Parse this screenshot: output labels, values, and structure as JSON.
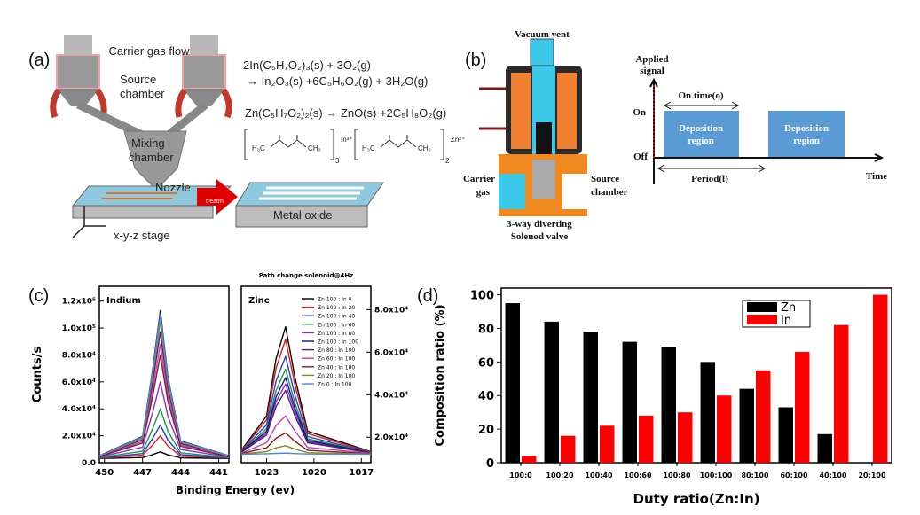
{
  "panel_letters": [
    "(a)",
    "(b)",
    "(c)",
    "(d)"
  ],
  "panel_a": {
    "carrier_gas": "Carrier gas flow",
    "source_chamber": [
      "Source",
      "chamber"
    ],
    "mixing_chamber": [
      "Mixing",
      "chamber"
    ],
    "nozzle": "Nozzle",
    "treatment": "treatm",
    "metal_oxide": "Metal oxide",
    "stage": "x-y-z stage",
    "equations": [
      "2In(C₅H₇O₂)₃(s) + 3O₂(g)",
      "→ In₂O₃(s) +6C₅H₆O₂(g) + 3H₂O(g)",
      "Zn(C₅H₇O₂)₂(s) → ZnO(s) +2C₅H₈O₂(g)"
    ],
    "molecule_groups": [
      "H₃C",
      "CH₃"
    ],
    "bracket_subscripts": [
      "3",
      "2"
    ],
    "ions": [
      "In³⁺",
      "Zn²⁺"
    ]
  },
  "panel_b": {
    "vacuum_vent": "Vacuum vent",
    "carrier_gas": [
      "Carrier",
      "gas"
    ],
    "source_chamber": [
      "Source",
      "chamber"
    ],
    "valve": [
      "3-way diverting",
      "Solenod valve"
    ],
    "signal_label": [
      "Applied",
      "signal"
    ],
    "on": "On",
    "off": "Off",
    "on_time": "On time(o)",
    "regions": [
      [
        "Deposition",
        "region"
      ],
      [
        "Deposition",
        "region"
      ]
    ],
    "period": "Period(l)",
    "time": "Time"
  },
  "chart_data": [
    {
      "type": "line",
      "label": "Indium",
      "y_label": "Counts/s",
      "x_label": "Binding Energy (ev)",
      "x": [
        450.4,
        447,
        446.2,
        445.6,
        445,
        444,
        440.2
      ],
      "xlim": [
        450.4,
        440.2
      ],
      "xticks": [
        450,
        447,
        444,
        441
      ],
      "ylim": [
        0,
        131000
      ],
      "yticks": [
        {
          "value": 0,
          "label": "0.0"
        },
        {
          "value": 20000,
          "label": "2.0x10⁴"
        },
        {
          "value": 40000,
          "label": "4.0x10⁴"
        },
        {
          "value": 60000,
          "label": "6.0x10⁴"
        },
        {
          "value": 80000,
          "label": "8.0x10⁴"
        },
        {
          "value": 100000,
          "label": "1.0x10⁵"
        },
        {
          "value": 120000,
          "label": "1.2x10⁵"
        }
      ],
      "series": [
        {
          "color": "#000000",
          "values": [
            3100,
            3800,
            6000,
            8000,
            5800,
            3600,
            3100
          ]
        },
        {
          "color": "#e41a1c",
          "values": [
            3300,
            5500,
            13200,
            20000,
            12400,
            5000,
            3300
          ]
        },
        {
          "color": "#1f3fd6",
          "values": [
            3500,
            6800,
            18000,
            28000,
            16800,
            6000,
            3500
          ]
        },
        {
          "color": "#1a9a3a",
          "values": [
            3700,
            8600,
            25200,
            40000,
            23400,
            7400,
            3700
          ]
        },
        {
          "color": "#8a2be2",
          "values": [
            4100,
            11600,
            37200,
            60000,
            34400,
            9800,
            4100
          ]
        },
        {
          "color": "#14147a",
          "values": [
            5200,
            19500,
            69000,
            113000,
            63500,
            16200,
            5200
          ]
        },
        {
          "color": "#5a1a6e",
          "values": [
            4900,
            17100,
            59400,
            97000,
            54700,
            14300,
            4900
          ]
        },
        {
          "color": "#c040c0",
          "values": [
            4700,
            15800,
            54000,
            88000,
            49800,
            13200,
            4700
          ]
        },
        {
          "color": "#8b1a1a",
          "values": [
            4500,
            14600,
            49200,
            80000,
            45400,
            12200,
            4500
          ]
        },
        {
          "color": "#8a8a1a",
          "values": [
            5000,
            18300,
            64200,
            105000,
            59100,
            15200,
            5000
          ]
        },
        {
          "color": "#4a8ad8",
          "values": [
            5100,
            19000,
            67200,
            110000,
            62000,
            15800,
            5100
          ]
        }
      ]
    },
    {
      "type": "line",
      "label": "Zinc",
      "title": "Path change solenoid@4Hz",
      "x": [
        1024.6,
        1023,
        1022.4,
        1021.8,
        1021.2,
        1020.4,
        1016.4
      ],
      "xlim": [
        1024.6,
        1016.4
      ],
      "xticks": [
        1023,
        1020,
        1017
      ],
      "y2lim": [
        8000,
        91000
      ],
      "y2ticks": [
        {
          "value": 20000,
          "label": "2.0x10⁴"
        },
        {
          "value": 40000,
          "label": "4.0x10⁴"
        },
        {
          "value": 60000,
          "label": "6.0x10⁴"
        },
        {
          "value": 80000,
          "label": "8.0x10⁴"
        }
      ],
      "series": [
        {
          "name": "Zn 100 : In 0",
          "color": "#000000",
          "axis": "y2",
          "values": [
            13800,
            30000,
            57000,
            72000,
            48000,
            22800,
            13200
          ]
        },
        {
          "name": "Zn 100 : In 20",
          "color": "#e41a1c",
          "axis": "y2",
          "values": [
            13600,
            28200,
            52500,
            66000,
            44400,
            21700,
            13100
          ]
        },
        {
          "name": "Zn 100 : In 40",
          "color": "#1f3fd6",
          "axis": "y2",
          "values": [
            13400,
            25800,
            46500,
            58000,
            39600,
            20300,
            12900
          ]
        },
        {
          "name": "Zn 100 : In 60",
          "color": "#1a9a3a",
          "axis": "y2",
          "values": [
            13200,
            24000,
            42000,
            52000,
            36000,
            19200,
            12800
          ]
        },
        {
          "name": "Zn 100 : In 80",
          "color": "#8a2be2",
          "axis": "y2",
          "values": [
            13000,
            21900,
            36800,
            45000,
            31800,
            17900,
            12700
          ]
        },
        {
          "name": "Zn 100 : In 100",
          "color": "#14147a",
          "axis": "y2",
          "values": [
            13100,
            22800,
            39000,
            48000,
            33600,
            18500,
            12700
          ]
        },
        {
          "name": "Zn 80 : In 100",
          "color": "#5a1a6e",
          "axis": "y2",
          "values": [
            12900,
            21000,
            34500,
            42000,
            30000,
            17400,
            12600
          ]
        },
        {
          "name": "Zn 60 : In 100",
          "color": "#c040c0",
          "axis": "y2",
          "values": [
            12500,
            17400,
            25500,
            30000,
            22800,
            15200,
            12400
          ]
        },
        {
          "name": "Zn 40 : In 100",
          "color": "#8b1a1a",
          "axis": "y2",
          "values": [
            12300,
            15000,
            19500,
            22000,
            18000,
            13800,
            12200
          ]
        },
        {
          "name": "Zn 20 : In 100",
          "color": "#8a8a1a",
          "axis": "y2",
          "values": [
            12100,
            13200,
            15000,
            16000,
            14400,
            12700,
            12100
          ]
        },
        {
          "name": "Zn 0 : In 100",
          "color": "#4a8ad8",
          "axis": "y2",
          "values": [
            12000,
            12200,
            12400,
            12500,
            12300,
            12100,
            12000
          ]
        }
      ]
    },
    {
      "type": "bar",
      "x_label": "Duty ratio(Zn:In)",
      "y_label": "Composition ratio (%)",
      "categories": [
        "100:0",
        "100:20",
        "100:40",
        "100:60",
        "100:80",
        "100:100",
        "80:100",
        "60:100",
        "40:100",
        "20:100"
      ],
      "ylim": [
        0,
        104
      ],
      "yticks": [
        0,
        20,
        40,
        60,
        80,
        100
      ],
      "series": [
        {
          "name": "Zn",
          "color": "#000000",
          "values": [
            95,
            84,
            78,
            72,
            69,
            60,
            44,
            33,
            17,
            0
          ]
        },
        {
          "name": "In",
          "color": "#ff0000",
          "values": [
            4,
            16,
            22,
            28,
            30,
            40,
            55,
            66,
            82,
            100
          ]
        }
      ]
    }
  ]
}
